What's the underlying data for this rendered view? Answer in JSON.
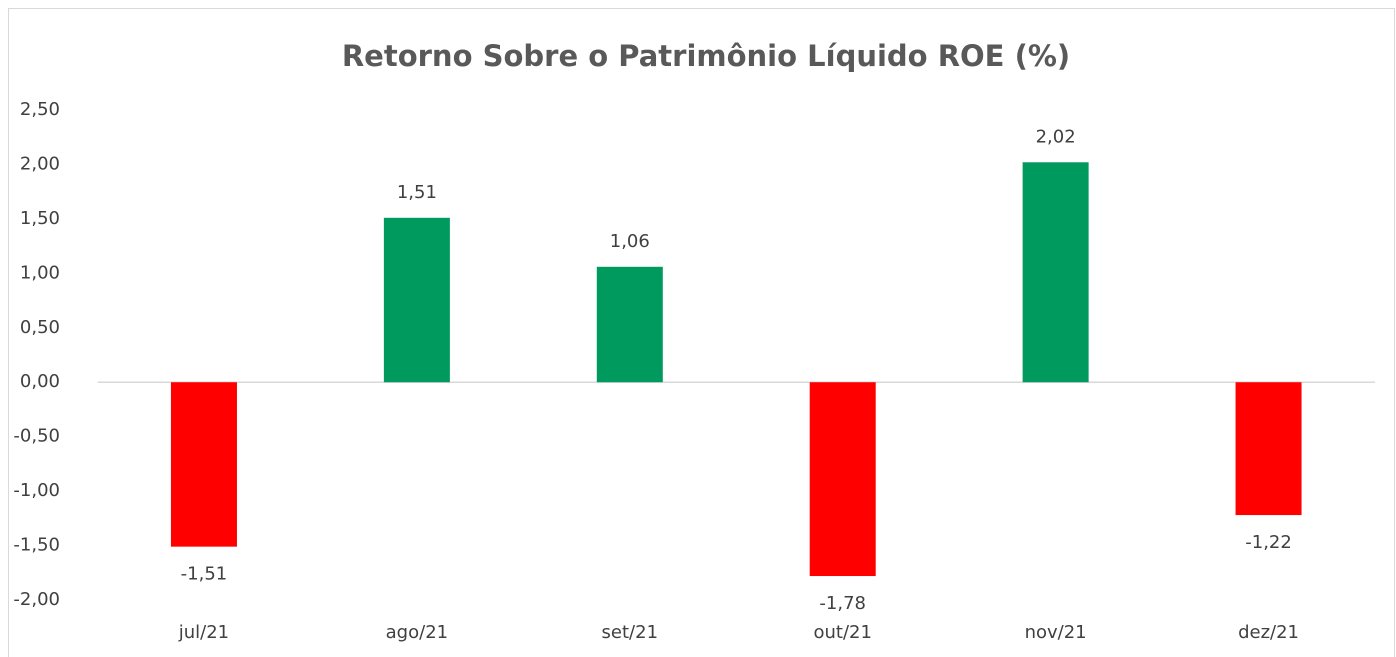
{
  "chart_data": {
    "type": "bar",
    "title": "Retorno Sobre o Patrimônio Líquido ROE (%)",
    "categories": [
      "jul/21",
      "ago/21",
      "set/21",
      "out/21",
      "nov/21",
      "dez/21"
    ],
    "values": [
      -1.51,
      1.51,
      1.06,
      -1.78,
      2.02,
      -1.22
    ],
    "value_labels": [
      "-1,51",
      "1,51",
      "1,06",
      "-1,78",
      "2,02",
      "-1,22"
    ],
    "color": "#009a5e",
    "negative_color": "#ff0000",
    "ylim": [
      -2,
      2.5
    ],
    "yticks": [
      {
        "value": 2.5,
        "label": "2,50"
      },
      {
        "value": 2,
        "label": "2,00"
      },
      {
        "value": 1.5,
        "label": "1,50"
      },
      {
        "value": 1,
        "label": "1,00"
      },
      {
        "value": 0.5,
        "label": "0,50"
      },
      {
        "value": 0,
        "label": "0,00"
      },
      {
        "value": -0.5,
        "label": "-0,50"
      },
      {
        "value": -1,
        "label": "-1,00"
      },
      {
        "value": -1.5,
        "label": "-1,50"
      },
      {
        "value": -2,
        "label": "-2,00"
      }
    ],
    "grid": false
  }
}
